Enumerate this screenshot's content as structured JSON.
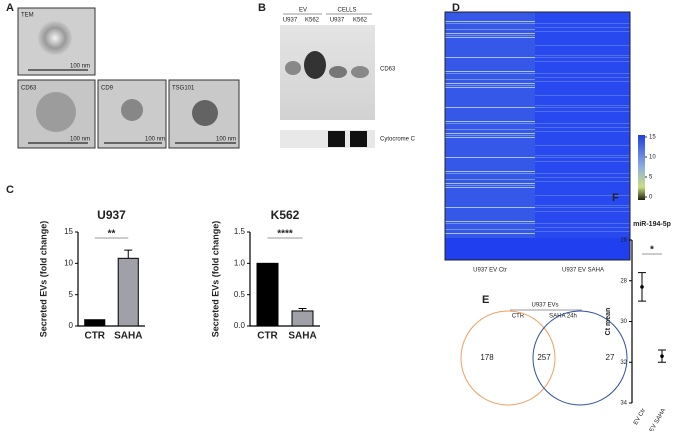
{
  "panels": {
    "A": {
      "label": "A",
      "images": [
        "TEM",
        "CD63",
        "CD9",
        "TSG101"
      ],
      "scale": "100 nm"
    },
    "B": {
      "label": "B",
      "groups": [
        "EV",
        "CELLS"
      ],
      "lanes": [
        "U937",
        "K562",
        "U937",
        "K562"
      ],
      "bands": [
        "CD63",
        "Cytocrome C"
      ]
    },
    "D": {
      "label": "D",
      "colorbar_ticks": [
        15,
        10,
        5,
        0
      ],
      "columns": [
        "U937 EV Ctr",
        "U937 EV SAHA"
      ]
    },
    "E": {
      "label": "E",
      "title": "U937 EVs",
      "sets": [
        "CTR",
        "SAHA 24h"
      ],
      "counts": [
        178,
        257,
        27
      ]
    }
  },
  "chart_data": [
    {
      "type": "bar",
      "panel": "C",
      "title": "U937",
      "ylabel": "Secreted EVs (fold change)",
      "categories": [
        "CTR",
        "SAHA"
      ],
      "values": [
        1,
        10.8
      ],
      "errors": [
        0,
        1.3
      ],
      "colors": [
        "#000000",
        "#a0a0a8"
      ],
      "ylim": [
        0,
        15
      ],
      "yticks": [
        0,
        5,
        10,
        15
      ],
      "significance": "**"
    },
    {
      "type": "bar",
      "title": "K562",
      "ylabel": "Secreted EVs (fold change)",
      "categories": [
        "CTR",
        "SAHA"
      ],
      "values": [
        1,
        0.24
      ],
      "errors": [
        0,
        0.04
      ],
      "colors": [
        "#000000",
        "#a0a0a8"
      ],
      "ylim": [
        0,
        1.5
      ],
      "yticks": [
        {
          "value": 0,
          "label": "0.0"
        },
        0.5,
        {
          "value": 1,
          "label": "1.0"
        },
        1.5
      ],
      "significance": "****"
    },
    {
      "type": "dot",
      "panel": "F",
      "title": "miR-194-5p",
      "ylabel": "Ct mean",
      "categories": [
        "EV Ctr",
        "EV SAHA"
      ],
      "values": [
        28.3,
        31.7
      ],
      "errors": [
        0.7,
        0.3
      ],
      "colors": [
        "#000000",
        "#000000"
      ],
      "ylim": [
        34,
        26
      ],
      "yticks": [
        26,
        28,
        30,
        32,
        34
      ],
      "significance": "*"
    }
  ]
}
